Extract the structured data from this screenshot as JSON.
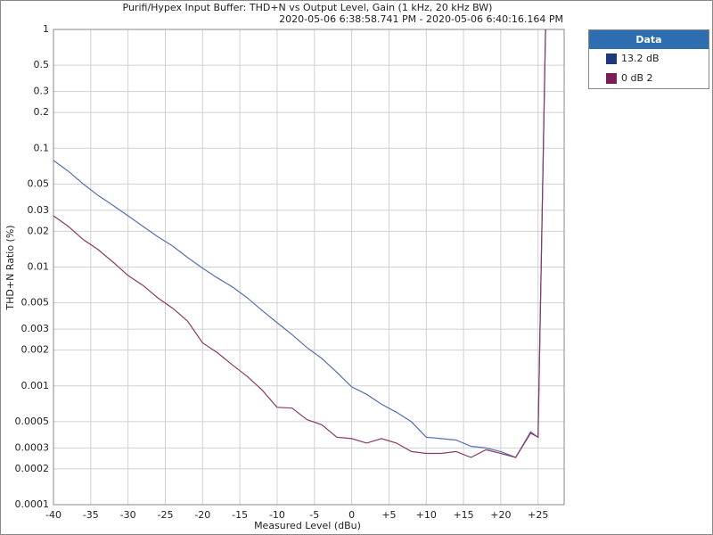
{
  "chart_data": {
    "type": "line",
    "title": "Purifi/Hypex Input Buffer: THD+N vs Output Level, Gain (1 kHz, 20 kHz BW)",
    "subtitle": "2020-05-06 6:38:58.741 PM - 2020-05-06 6:40:16.164 PM",
    "x_label": "Measured Level (dBu)",
    "y_label": "THD+N Ratio (%)",
    "legend_title": "Data",
    "log_y": true,
    "grid": true,
    "x": [
      -40,
      -38,
      -36,
      -34,
      -32,
      -30,
      -28,
      -26,
      -24,
      -22,
      -20,
      -18,
      -16,
      -14,
      -12,
      -10,
      -8,
      -6,
      -4,
      -2,
      0,
      2,
      4,
      6,
      8,
      10,
      12,
      14,
      16,
      18,
      20,
      22,
      24,
      25,
      26
    ],
    "series": [
      {
        "name": "13.2 dB",
        "color": "#5470b0",
        "swatch": "#1f3a78",
        "values": [
          0.079,
          0.064,
          0.05,
          0.04,
          0.033,
          0.027,
          0.022,
          0.018,
          0.015,
          0.012,
          0.0098,
          0.0081,
          0.0068,
          0.0055,
          0.0043,
          0.0034,
          0.0027,
          0.0021,
          0.0017,
          0.0013,
          0.00098,
          0.00085,
          0.0007,
          0.0006,
          0.0005,
          0.00037,
          0.00036,
          0.00035,
          0.00031,
          0.0003,
          0.00028,
          0.00025,
          0.00041,
          0.00037,
          1
        ]
      },
      {
        "name": "0 dB 2",
        "color": "#8a3868",
        "swatch": "#7a1f55",
        "values": [
          0.027,
          0.022,
          0.017,
          0.014,
          0.011,
          0.0085,
          0.007,
          0.0055,
          0.0045,
          0.0035,
          0.0023,
          0.0019,
          0.0015,
          0.0012,
          0.00092,
          0.00066,
          0.00065,
          0.00052,
          0.00047,
          0.00037,
          0.00036,
          0.00033,
          0.00036,
          0.00033,
          0.00028,
          0.00027,
          0.00027,
          0.00028,
          0.00025,
          0.00029,
          0.00027,
          0.00025,
          0.0004,
          0.00037,
          1
        ]
      }
    ],
    "xlim": [
      -40,
      28.5
    ],
    "xticks": [
      -40,
      -35,
      -30,
      -25,
      -20,
      -15,
      -10,
      -5,
      0,
      {
        "value": 5,
        "label": "+5"
      },
      {
        "value": 10,
        "label": "+10"
      },
      {
        "value": 15,
        "label": "+15"
      },
      {
        "value": 20,
        "label": "+20"
      },
      {
        "value": 25,
        "label": "+25"
      }
    ],
    "ylim": [
      0.0001,
      1
    ],
    "yticks": [
      1,
      0.5,
      0.3,
      0.2,
      0.1,
      0.05,
      0.03,
      0.02,
      0.01,
      0.005,
      0.003,
      0.002,
      0.001,
      0.0005,
      0.0003,
      0.0002,
      0.0001
    ]
  }
}
